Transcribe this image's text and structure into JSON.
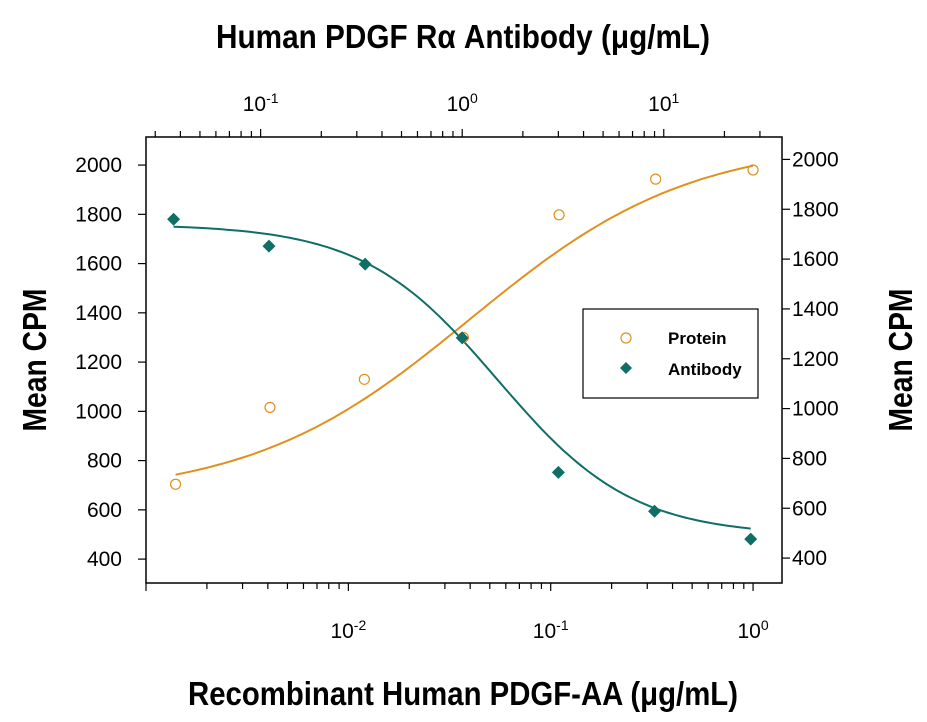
{
  "chart_data": {
    "type": "scatter",
    "title": "Human PDGF Rα Antibody (μg/mL)",
    "xlabel": "Recombinant Human PDGF-AA (μg/mL)",
    "ylabel": "Mean CPM",
    "ylabel_right": "Mean CPM",
    "x_bottom": {
      "scale": "log",
      "range": [
        0.001,
        1.39
      ],
      "ticks": [
        0.01,
        0.1,
        1
      ],
      "tick_labels": [
        [
          "10",
          "-2"
        ],
        [
          "10",
          "-1"
        ],
        [
          "10",
          "0"
        ]
      ]
    },
    "x_top": {
      "scale": "log",
      "range": [
        0.027,
        38.6
      ],
      "ticks": [
        0.1,
        1,
        10
      ],
      "tick_labels": [
        [
          "10",
          "-1"
        ],
        [
          "10",
          "0"
        ],
        [
          "10",
          "1"
        ]
      ]
    },
    "y_left": {
      "range": [
        303,
        2114
      ],
      "ticks": [
        400,
        600,
        800,
        1000,
        1200,
        1400,
        1600,
        1800,
        2000
      ]
    },
    "y_right": {
      "range": [
        300,
        2090
      ],
      "ticks": [
        400,
        600,
        800,
        1000,
        1200,
        1400,
        1600,
        1800,
        2000
      ]
    },
    "grid": false,
    "legend_position": "center-right",
    "series": [
      {
        "name": "Protein",
        "axis": "bottom-left",
        "marker": "open-circle",
        "color": "#E0901E",
        "x": [
          0.0014,
          0.0041,
          0.012,
          0.037,
          0.11,
          0.33,
          1.0
        ],
        "y": [
          704,
          1016,
          1130,
          1300,
          1798,
          1943,
          1980
        ],
        "fit": {
          "model": "4PL",
          "bottom": 650,
          "top": 2100,
          "ec50": 0.04,
          "hill": 0.8
        }
      },
      {
        "name": "Antibody",
        "axis": "top-right",
        "marker": "filled-diamond",
        "color": "#0F6E66",
        "x": [
          0.037,
          0.11,
          0.33,
          1.0,
          3.0,
          9.0,
          27
        ],
        "y": [
          1760,
          1652,
          1580,
          1284,
          744,
          588,
          476
        ],
        "fit": {
          "model": "4PL",
          "bottom": 490,
          "top": 1740,
          "ec50": 1.5,
          "hill": 1.3
        }
      }
    ]
  }
}
